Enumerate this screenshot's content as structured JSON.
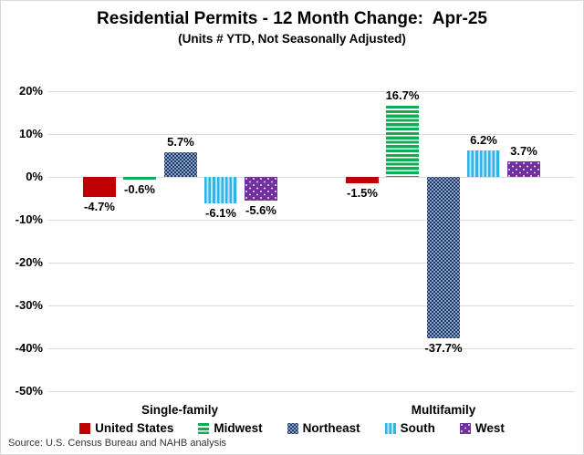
{
  "title": "Residential Permits - 12 Month Change:  Apr-25",
  "subtitle": "(Units # YTD, Not Seasonally Adjusted)",
  "source": "Source: U.S. Census Bureau and NAHB analysis",
  "chart_data": {
    "type": "bar",
    "categories": [
      "Single-family",
      "Multifamily"
    ],
    "series": [
      {
        "name": "United States",
        "values": [
          -4.7,
          -1.5
        ],
        "labels": [
          "-4.7%",
          "-1.5%"
        ],
        "color": "#c00000",
        "pattern": "solid"
      },
      {
        "name": "Midwest",
        "values": [
          -0.6,
          16.7
        ],
        "labels": [
          "-0.6%",
          "16.7%"
        ],
        "color": "#0ead54",
        "pattern": "hstripe"
      },
      {
        "name": "Northeast",
        "values": [
          5.7,
          -37.7
        ],
        "labels": [
          "5.7%",
          "-37.7%"
        ],
        "color": "#1f3864",
        "pattern": "dotweave"
      },
      {
        "name": "South",
        "values": [
          -6.1,
          6.2
        ],
        "labels": [
          "-6.1%",
          "6.2%"
        ],
        "color": "#2fb4ea",
        "pattern": "vstripe"
      },
      {
        "name": "West",
        "values": [
          -5.6,
          3.7
        ],
        "labels": [
          "-5.6%",
          "3.7%"
        ],
        "color": "#7030a0",
        "pattern": "dots"
      }
    ],
    "y_ticks": [
      {
        "label": "20%",
        "value": 20
      },
      {
        "label": "10%",
        "value": 10
      },
      {
        "label": "0%",
        "value": 0
      },
      {
        "label": "-10%",
        "value": -10
      },
      {
        "label": "-20%",
        "value": -20
      },
      {
        "label": "-30%",
        "value": -30
      },
      {
        "label": "-40%",
        "value": -40
      },
      {
        "label": "-50%",
        "value": -50
      }
    ],
    "ylim": [
      -50,
      20
    ],
    "grid": true,
    "legend_position": "bottom"
  }
}
